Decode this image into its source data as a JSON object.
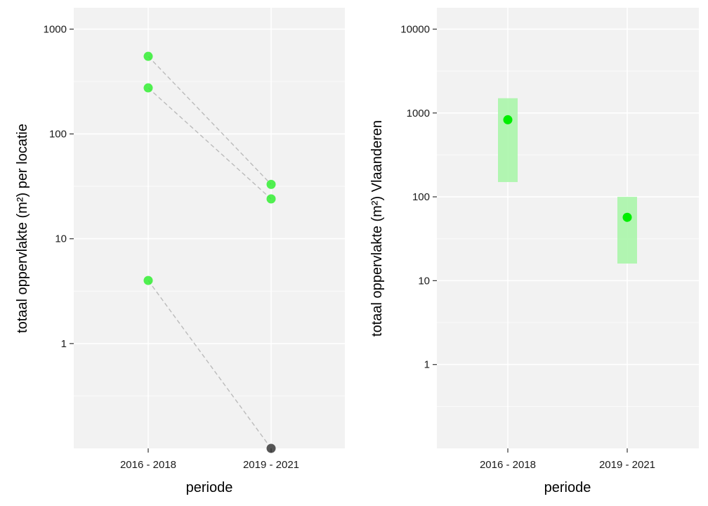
{
  "chart_data": [
    {
      "type": "scatter",
      "title": "",
      "xlabel": "periode",
      "ylabel": "totaal oppervlakte (m²) per locatie",
      "yscale": "log",
      "ylim": [
        0.1,
        1600
      ],
      "categories": [
        "2016 - 2018",
        "2019 - 2021"
      ],
      "yticks": [
        1,
        10,
        100,
        1000
      ],
      "ytick_labels": [
        "1",
        "10",
        "100",
        "1000"
      ],
      "grid": true,
      "legend": "none",
      "point_colors": {
        "present": "#33ee33",
        "absent": "#555555"
      },
      "connector_color": "#bbbbbb",
      "series": [
        {
          "values": [
            550,
            33
          ]
        },
        {
          "values": [
            275,
            24
          ]
        },
        {
          "values": [
            4,
            0.1
          ],
          "absent_in": [
            "2019 - 2021"
          ]
        }
      ]
    },
    {
      "type": "scatter",
      "title": "",
      "xlabel": "periode",
      "ylabel": "totaal oppervlakte (m²) Vlaanderen",
      "yscale": "log",
      "ylim": [
        0.1,
        18000
      ],
      "categories": [
        "2016 - 2018",
        "2019 - 2021"
      ],
      "yticks": [
        1,
        10,
        100,
        1000,
        10000
      ],
      "ytick_labels": [
        "1",
        "10",
        "100",
        "1000",
        "10000"
      ],
      "grid": true,
      "legend": "none",
      "point_color": "#00ee00",
      "interval_color": "#aaf5aa",
      "points": [
        {
          "category": "2016 - 2018",
          "value": 830,
          "low": 150,
          "high": 1500
        },
        {
          "category": "2019 - 2021",
          "value": 57,
          "low": 16,
          "high": 100
        }
      ]
    }
  ]
}
